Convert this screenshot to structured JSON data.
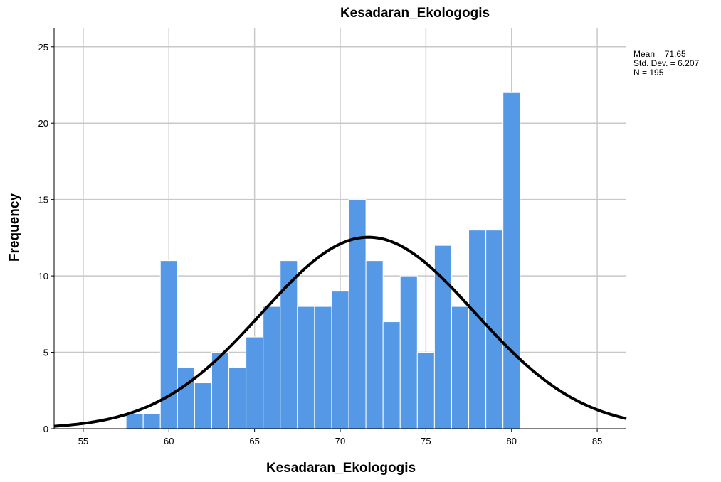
{
  "chart_data": {
    "type": "bar",
    "title": "Kesadaran_Ekologogis",
    "xlabel": "Kesadaran_Ekologogis",
    "ylabel": "Frequency",
    "xlim": [
      53.3,
      86.7
    ],
    "ylim": [
      0,
      26.2
    ],
    "x_ticks": [
      55,
      60,
      65,
      70,
      75,
      80,
      85
    ],
    "y_ticks": [
      0,
      5,
      10,
      15,
      20,
      25
    ],
    "grid": true,
    "bin_width": 1,
    "bins": [
      {
        "x": 58,
        "value": 1
      },
      {
        "x": 59,
        "value": 1
      },
      {
        "x": 60,
        "value": 11
      },
      {
        "x": 61,
        "value": 4
      },
      {
        "x": 62,
        "value": 3
      },
      {
        "x": 63,
        "value": 5
      },
      {
        "x": 64,
        "value": 4
      },
      {
        "x": 65,
        "value": 6
      },
      {
        "x": 66,
        "value": 8
      },
      {
        "x": 67,
        "value": 11
      },
      {
        "x": 68,
        "value": 8
      },
      {
        "x": 69,
        "value": 8
      },
      {
        "x": 70,
        "value": 9
      },
      {
        "x": 71,
        "value": 15
      },
      {
        "x": 72,
        "value": 11
      },
      {
        "x": 73,
        "value": 7
      },
      {
        "x": 74,
        "value": 10
      },
      {
        "x": 75,
        "value": 5
      },
      {
        "x": 76,
        "value": 12
      },
      {
        "x": 77,
        "value": 8
      },
      {
        "x": 78,
        "value": 13
      },
      {
        "x": 79,
        "value": 13
      },
      {
        "x": 80,
        "value": 22
      }
    ],
    "normal_curve": {
      "mean": 71.65,
      "std_dev": 6.207,
      "n": 195
    },
    "stats_text": [
      "Mean = 71.65",
      "Std. Dev. = 6.207",
      "N = 195"
    ],
    "colors": {
      "bar_fill": "#5599e6",
      "bar_stroke": "#ffffff",
      "grid": "#c8c8c8",
      "curve": "#000000"
    }
  }
}
